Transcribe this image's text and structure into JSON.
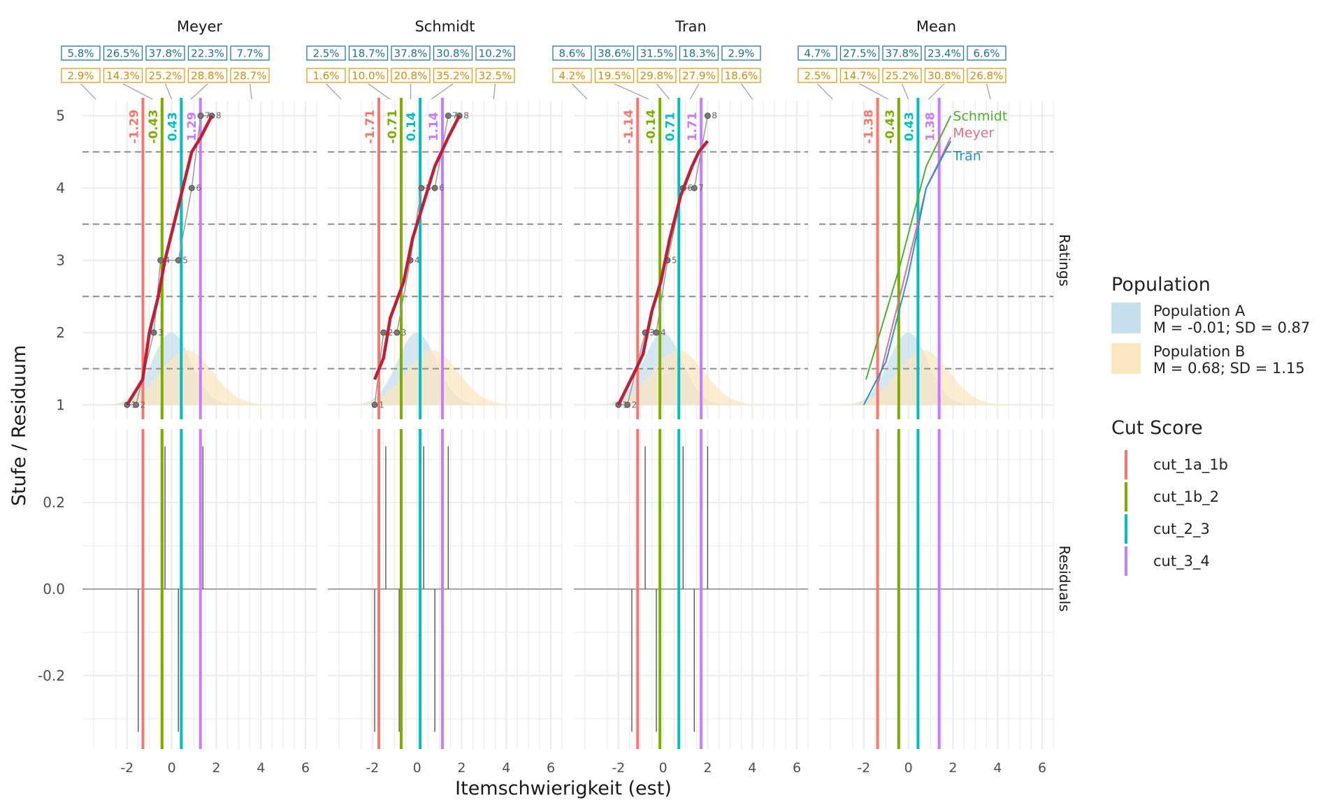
{
  "chart_data": {
    "type": "line",
    "xlabel": "Itemschwierigkeit (est)",
    "ylabel": "Stufe / Residuum",
    "xlim": [
      -4,
      6.5
    ],
    "xticks": [
      -2,
      0,
      2,
      4,
      6
    ],
    "xtick_labels": [
      "-2",
      "0",
      "2",
      "4",
      "6"
    ],
    "row_labels": [
      "Ratings",
      "Residuals"
    ],
    "ratings_ylim": [
      0.8,
      5.2
    ],
    "ratings_yticks": [
      1,
      2,
      3,
      4,
      5
    ],
    "ratings_ytick_labels": [
      "1",
      "2",
      "3",
      "4",
      "5"
    ],
    "threshold_lines": [
      1.5,
      2.5,
      3.5,
      4.5
    ],
    "residual_ylim": [
      -0.37,
      0.37
    ],
    "residual_yticks": [
      -0.2,
      0.0,
      0.2
    ],
    "residual_ytick_labels": [
      "-0.2",
      "0.0",
      "0.2"
    ],
    "cut_names": [
      "cut_1a_1b",
      "cut_1b_2",
      "cut_2_3",
      "cut_3_4"
    ],
    "cut_colors": [
      "#F8766D",
      "#7CAE00",
      "#00BFC4",
      "#C77CFF"
    ],
    "population_colors": [
      "#c6dfec",
      "#fbe6c0"
    ],
    "populations": [
      {
        "name": "Population A",
        "mean": -0.01,
        "sd": 0.87,
        "label": "M = -0.01; SD = 0.87"
      },
      {
        "name": "Population B",
        "mean": 0.68,
        "sd": 1.15,
        "label": "M = 0.68; SD = 1.15"
      }
    ],
    "panels": [
      {
        "name": "Meyer",
        "pct_top": [
          "5.8%",
          "26.5%",
          "37.8%",
          "22.3%",
          "7.7%"
        ],
        "pct_bottom": [
          "2.9%",
          "14.3%",
          "25.2%",
          "28.8%",
          "28.7%"
        ],
        "cuts": [
          -1.29,
          -0.43,
          0.43,
          1.29
        ],
        "cut_labels": [
          "-1.29",
          "-0.43",
          "0.43",
          "1.29"
        ],
        "points": [
          {
            "x": -2.0,
            "y": 1,
            "label": "1"
          },
          {
            "x": -1.6,
            "y": 1,
            "label": "2"
          },
          {
            "x": -0.8,
            "y": 2,
            "label": "3"
          },
          {
            "x": -0.5,
            "y": 3,
            "label": "4"
          },
          {
            "x": 0.3,
            "y": 3,
            "label": "5"
          },
          {
            "x": 0.9,
            "y": 4,
            "label": "6"
          },
          {
            "x": 1.3,
            "y": 5,
            "label": "7"
          },
          {
            "x": 1.8,
            "y": 5,
            "label": "8"
          }
        ],
        "fit": [
          [
            -2.0,
            1.0
          ],
          [
            -1.3,
            1.35
          ],
          [
            -1.0,
            2.0
          ],
          [
            -0.6,
            2.5
          ],
          [
            -0.3,
            3.0
          ],
          [
            0.1,
            3.5
          ],
          [
            0.5,
            4.0
          ],
          [
            0.9,
            4.5
          ],
          [
            1.3,
            4.7
          ],
          [
            1.8,
            5.0
          ]
        ],
        "residuals": [
          {
            "x": -1.5,
            "r": -0.33
          },
          {
            "x": -0.3,
            "r": 0.33
          },
          {
            "x": 0.3,
            "r": -0.33
          },
          {
            "x": 1.4,
            "r": 0.33
          }
        ]
      },
      {
        "name": "Schmidt",
        "pct_top": [
          "2.5%",
          "18.7%",
          "37.8%",
          "30.8%",
          "10.2%"
        ],
        "pct_bottom": [
          "1.6%",
          "10.0%",
          "20.8%",
          "35.2%",
          "32.5%"
        ],
        "cuts": [
          -1.71,
          -0.71,
          0.14,
          1.14
        ],
        "cut_labels": [
          "-1.71",
          "-0.71",
          "0.14",
          "1.14"
        ],
        "points": [
          {
            "x": -1.9,
            "y": 1,
            "label": "1"
          },
          {
            "x": -1.5,
            "y": 2,
            "label": "2"
          },
          {
            "x": -0.9,
            "y": 2,
            "label": "3"
          },
          {
            "x": -0.3,
            "y": 3,
            "label": "4"
          },
          {
            "x": 0.2,
            "y": 4,
            "label": "5"
          },
          {
            "x": 0.8,
            "y": 4,
            "label": "6"
          },
          {
            "x": 1.4,
            "y": 5,
            "label": "7"
          },
          {
            "x": 1.9,
            "y": 5,
            "label": "8"
          }
        ],
        "fit": [
          [
            -1.9,
            1.35
          ],
          [
            -1.5,
            1.65
          ],
          [
            -1.2,
            2.2
          ],
          [
            -0.6,
            2.7
          ],
          [
            -0.2,
            3.3
          ],
          [
            0.4,
            3.9
          ],
          [
            0.8,
            4.3
          ],
          [
            1.4,
            4.7
          ],
          [
            1.9,
            5.0
          ]
        ],
        "residuals": [
          {
            "x": -1.9,
            "r": -0.33
          },
          {
            "x": -1.4,
            "r": 0.33
          },
          {
            "x": -0.8,
            "r": -0.33
          },
          {
            "x": 0.3,
            "r": 0.33
          },
          {
            "x": 0.8,
            "r": -0.33
          },
          {
            "x": 1.4,
            "r": 0.33
          }
        ]
      },
      {
        "name": "Tran",
        "pct_top": [
          "8.6%",
          "38.6%",
          "31.5%",
          "18.3%",
          "2.9%"
        ],
        "pct_bottom": [
          "4.2%",
          "19.5%",
          "29.8%",
          "27.9%",
          "18.6%"
        ],
        "cuts": [
          -1.14,
          -0.14,
          0.71,
          1.71
        ],
        "cut_labels": [
          "-1.14",
          "-0.14",
          "0.71",
          "1.71"
        ],
        "points": [
          {
            "x": -2.0,
            "y": 1,
            "label": "1"
          },
          {
            "x": -1.6,
            "y": 1,
            "label": "2"
          },
          {
            "x": -0.8,
            "y": 2,
            "label": "3"
          },
          {
            "x": -0.3,
            "y": 2,
            "label": "4"
          },
          {
            "x": 0.2,
            "y": 3,
            "label": "5"
          },
          {
            "x": 0.9,
            "y": 4,
            "label": "6"
          },
          {
            "x": 1.4,
            "y": 4,
            "label": "7"
          },
          {
            "x": 2.0,
            "y": 5,
            "label": "8"
          }
        ],
        "fit": [
          [
            -2.0,
            1.0
          ],
          [
            -1.2,
            1.5
          ],
          [
            -0.9,
            1.7
          ],
          [
            -0.5,
            2.3
          ],
          [
            -0.1,
            2.7
          ],
          [
            0.3,
            3.3
          ],
          [
            0.8,
            3.9
          ],
          [
            1.3,
            4.3
          ],
          [
            1.6,
            4.5
          ],
          [
            2.0,
            4.65
          ]
        ],
        "residuals": [
          {
            "x": -1.4,
            "r": -0.33
          },
          {
            "x": -0.8,
            "r": 0.33
          },
          {
            "x": -0.3,
            "r": -0.33
          },
          {
            "x": 0.9,
            "r": 0.33
          },
          {
            "x": 1.4,
            "r": -0.33
          },
          {
            "x": 2.0,
            "r": 0.33
          }
        ]
      },
      {
        "name": "Mean",
        "pct_top": [
          "4.7%",
          "27.5%",
          "37.8%",
          "23.4%",
          "6.6%"
        ],
        "pct_bottom": [
          "2.5%",
          "14.7%",
          "25.2%",
          "30.8%",
          "26.8%"
        ],
        "cuts": [
          -1.38,
          -0.43,
          0.43,
          1.38
        ],
        "cut_labels": [
          "-1.38",
          "-0.43",
          "0.43",
          "1.38"
        ],
        "rater_lines": [
          {
            "name": "Schmidt",
            "color": "#4daf2e",
            "pts": [
              [
                -1.9,
                1.35
              ],
              [
                -0.4,
                2.9
              ],
              [
                0.8,
                4.3
              ],
              [
                1.9,
                5.0
              ]
            ]
          },
          {
            "name": "Meyer",
            "color": "#e0708a",
            "pts": [
              [
                -1.4,
                1.25
              ],
              [
                -0.3,
                2.6
              ],
              [
                0.8,
                4.0
              ],
              [
                1.9,
                4.7
              ]
            ]
          },
          {
            "name": "Tran",
            "color": "#2196d3",
            "pts": [
              [
                -2.0,
                1.0
              ],
              [
                -1.0,
                1.6
              ],
              [
                0.0,
                2.8
              ],
              [
                0.8,
                4.0
              ],
              [
                1.9,
                4.65
              ]
            ]
          }
        ],
        "rater_labels": [
          {
            "text": "Schmidt",
            "color": "#4daf2e"
          },
          {
            "text": "Meyer",
            "color": "#e0708a"
          },
          {
            "text": "Tran",
            "color": "#2196d3"
          }
        ]
      }
    ]
  },
  "legend": {
    "population_title": "Population",
    "population_items": [
      {
        "name": "Population A",
        "label": "M = -0.01; SD = 0.87"
      },
      {
        "name": "Population B",
        "label": "M = 0.68; SD = 1.15"
      }
    ],
    "cut_title": "Cut Score",
    "cut_items": [
      "cut_1a_1b",
      "cut_1b_2",
      "cut_2_3",
      "cut_3_4"
    ]
  }
}
